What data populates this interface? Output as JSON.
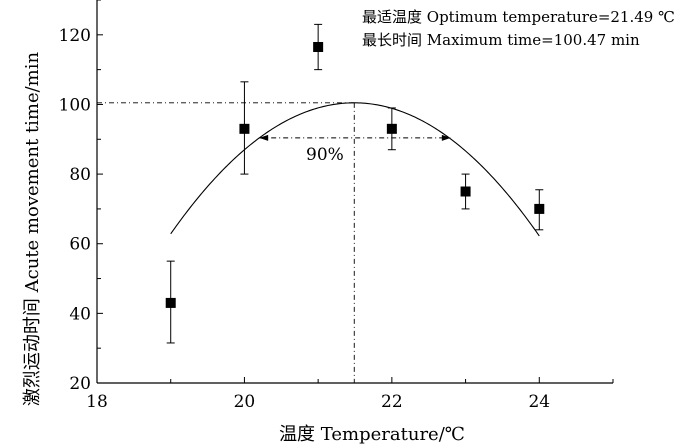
{
  "chart_data": {
    "type": "scatter",
    "title": "",
    "xlabel": "温度 Temperature/℃",
    "ylabel": "激烈运动时间 Acute movement time/min",
    "xlim": [
      18,
      25
    ],
    "ylim": [
      20,
      130
    ],
    "x_ticks": [
      18,
      20,
      22,
      24
    ],
    "y_ticks": [
      20,
      40,
      60,
      80,
      100,
      120
    ],
    "grid": false,
    "points": [
      {
        "x": 19,
        "y": 43,
        "err_low": 31.5,
        "err_high": 55
      },
      {
        "x": 20,
        "y": 93,
        "err_low": 80,
        "err_high": 106.5
      },
      {
        "x": 21,
        "y": 116.5,
        "err_low": 110,
        "err_high": 123
      },
      {
        "x": 22,
        "y": 93,
        "err_low": 87,
        "err_high": 99
      },
      {
        "x": 23,
        "y": 75,
        "err_low": 70,
        "err_high": 80
      },
      {
        "x": 24,
        "y": 70,
        "err_low": 64,
        "err_high": 75.5
      }
    ],
    "fit_curve": {
      "peak_x": 21.49,
      "peak_y": 100.47,
      "x_range": [
        19,
        24
      ],
      "curvature": 6.07
    },
    "reference": {
      "x": 21.49,
      "y": 100.47,
      "level_90": 90.4,
      "level_90_x": [
        20.2,
        22.8
      ]
    },
    "annotations": {
      "line1": "最适温度 Optimum temperature=21.49 ℃",
      "line2": "最长时间 Maximum time=100.47 min",
      "percent_label": "90%"
    }
  }
}
